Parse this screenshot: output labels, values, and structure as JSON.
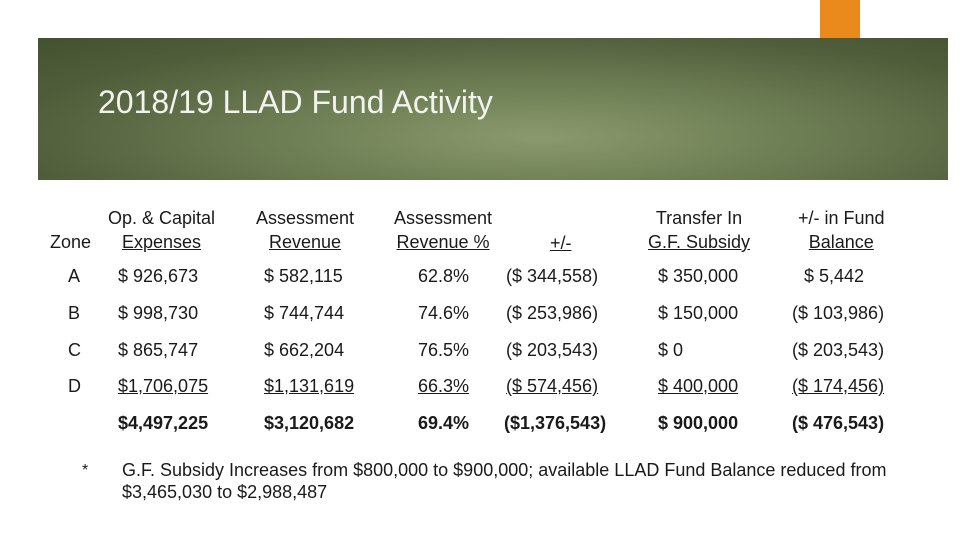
{
  "title": "2018/19 LLAD Fund Activity",
  "headers": {
    "zone": "Zone",
    "opex_line1": "Op. & Capital",
    "opex_line2": "Expenses",
    "assess_rev_line1": "Assessment",
    "assess_rev_line2": "Revenue",
    "assess_pct_line1": "Assessment",
    "assess_pct_line2": "Revenue %",
    "plusminus": "+/-",
    "transfer_line1": "Transfer In",
    "transfer_line2": "G.F. Subsidy",
    "fund_line1": "+/- in Fund",
    "fund_line2": "Balance"
  },
  "rows": [
    {
      "zone": "A",
      "opex": "$  926,673",
      "rev": "$  582,115",
      "pct": "62.8%",
      "pm": "($  344,558)",
      "transfer": "$  350,000",
      "fund": "$     5,442"
    },
    {
      "zone": "B",
      "opex": "$  998,730",
      "rev": "$  744,744",
      "pct": "74.6%",
      "pm": "($  253,986)",
      "transfer": "$  150,000",
      "fund": "($  103,986)"
    },
    {
      "zone": "C",
      "opex": "$  865,747",
      "rev": "$  662,204",
      "pct": "76.5%",
      "pm": "($  203,543)",
      "transfer": "$             0",
      "fund": "($  203,543)"
    },
    {
      "zone": "D",
      "opex": "$1,706,075",
      "rev": "$1,131,619",
      "pct": "66.3%",
      "pm": "($  574,456)",
      "transfer": "$  400,000",
      "fund": "($  174,456)"
    }
  ],
  "totals": {
    "opex": "$4,497,225",
    "rev": "$3,120,682",
    "pct": "69.4%",
    "pm": "($1,376,543)",
    "transfer": "$  900,000",
    "fund": "($  476,543)"
  },
  "footnote": {
    "marker": "*",
    "text": "G.F. Subsidy Increases from $800,000 to $900,000; available LLAD Fund Balance reduced from $3,465,030 to $2,988,487"
  }
}
